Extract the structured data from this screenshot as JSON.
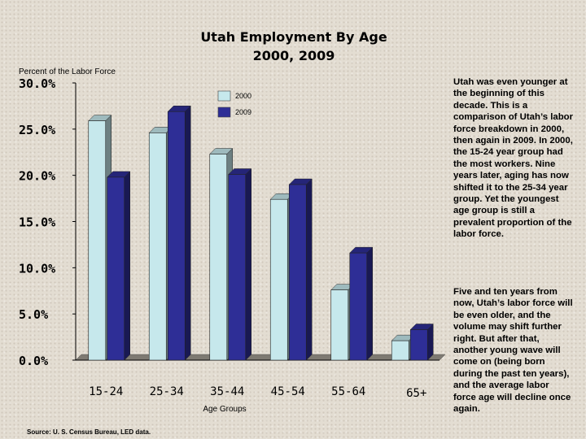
{
  "chart_data": {
    "type": "bar",
    "title_lines": [
      "Utah Employment By Age",
      "2000, 2009"
    ],
    "ylabel": "Percent of the Labor Force",
    "xlabel": "Age Groups",
    "categories": [
      "15-24",
      "25-34",
      "35-44",
      "45-54",
      "55-64",
      "65+"
    ],
    "series": [
      {
        "name": "2000",
        "values": [
          25.9,
          24.6,
          22.3,
          17.4,
          7.6,
          2.1
        ],
        "color": "#c6e8ec"
      },
      {
        "name": "2009",
        "values": [
          19.8,
          26.9,
          20.1,
          19.0,
          11.6,
          3.3
        ],
        "color": "#2e2e96"
      }
    ],
    "ylim": [
      0,
      30
    ],
    "yticks": [
      "0.0%",
      "5.0%",
      "10.0%",
      "15.0%",
      "20.0%",
      "25.0%",
      "30.0%"
    ],
    "legend_position": "top-center",
    "source": "Source: U. S. Census Bureau, LED data."
  },
  "commentary": {
    "paragraph_1": "Utah was even younger at the beginning of this decade. This is a comparison of Utah’s labor force breakdown in 2000, then again in 2009. In 2000, the 15-24 year group had the most workers. Nine years later, aging has now shifted it to the 25-34 year group. Yet the youngest age group is still a prevalent proportion of the labor force.",
    "paragraph_2": "Five and ten years from now, Utah’s labor force will be even older, and the volume may shift further right. But after that, another young wave will come on (being born during the past ten years), and the average labor force age will decline once again."
  }
}
